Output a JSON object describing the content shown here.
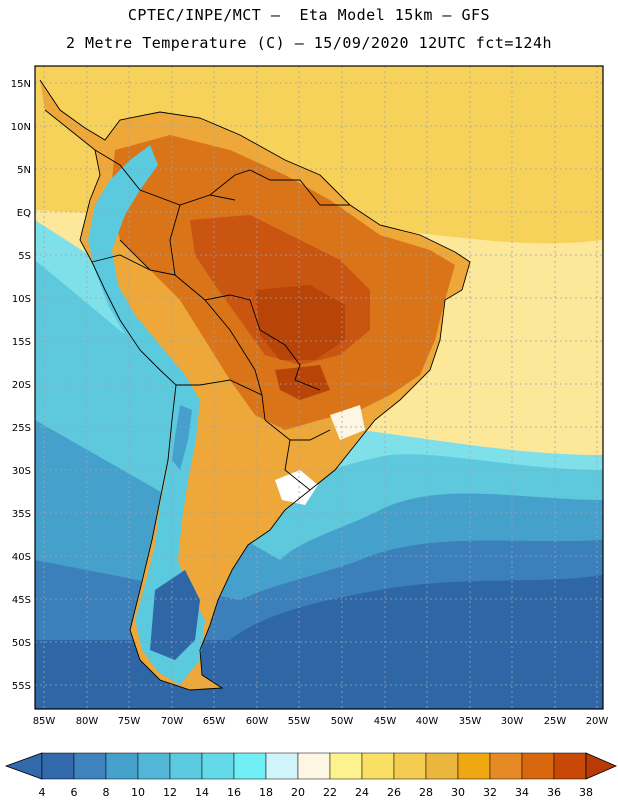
{
  "header": {
    "line1": "CPTEC/INPE/MCT –  Eta Model 15km – GFS",
    "line2": "2 Metre Temperature (C) – 15/09/2020 12UTC fct=124h"
  },
  "map": {
    "lat_ticks": [
      "15N",
      "10N",
      "5N",
      "EQ",
      "5S",
      "10S",
      "15S",
      "20S",
      "25S",
      "30S",
      "35S",
      "40S",
      "45S",
      "50S",
      "55S"
    ],
    "lon_ticks": [
      "85W",
      "80W",
      "75W",
      "70W",
      "65W",
      "60W",
      "55W",
      "50W",
      "45W",
      "40W",
      "35W",
      "30W",
      "25W",
      "20W"
    ],
    "colors": {
      "ocean_north": "#f7d25a",
      "ocean_mid": "#fde89a",
      "ocean_cool": "#5ec8dc",
      "ocean_south": "#3f8fc4",
      "ocean_far_south": "#2f66a6",
      "land_hot": "#d06418",
      "land_very_hot": "#b84408",
      "land_warm": "#eea83a",
      "andes_cold": "#4fa8d0",
      "grid": "#9aa4b4",
      "border": "#000000"
    }
  },
  "colorbar": {
    "labels": [
      "4",
      "6",
      "8",
      "10",
      "12",
      "14",
      "16",
      "18",
      "20",
      "22",
      "24",
      "26",
      "28",
      "30",
      "32",
      "34",
      "36",
      "38"
    ],
    "colors": [
      "#3169ab",
      "#3e83bd",
      "#45a1cb",
      "#52b7d6",
      "#5bc9de",
      "#64d9e8",
      "#70eef5",
      "#cff4fb",
      "#fdf6e2",
      "#fdf38e",
      "#f9df64",
      "#f4cc52",
      "#eab63e",
      "#efa812",
      "#e58a24",
      "#d9670e",
      "#c84808",
      "#b83a06"
    ],
    "arrow_left": "#3169ab",
    "arrow_right": "#b83a06"
  }
}
